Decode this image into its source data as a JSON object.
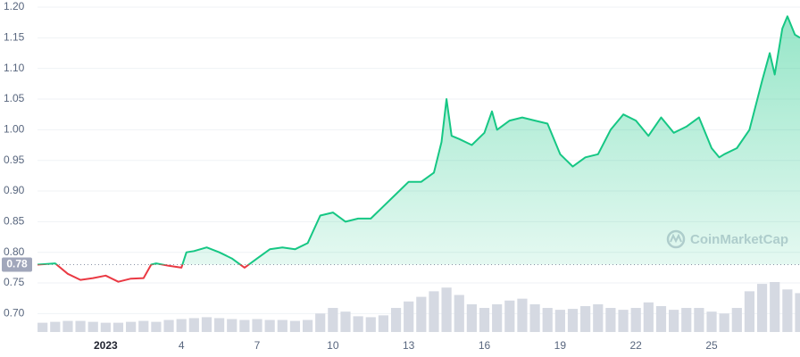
{
  "chart_data": {
    "type": "line",
    "x": [
      -1.7,
      -1,
      -0.5,
      0,
      0.5,
      1,
      1.5,
      2,
      2.5,
      2.8,
      3,
      3.5,
      4,
      4.2,
      4.5,
      5,
      5.5,
      6,
      6.5,
      7,
      7.5,
      8,
      8.5,
      9,
      9.5,
      10,
      10.5,
      11,
      11.5,
      12,
      12.5,
      13,
      13.5,
      14,
      14.3,
      14.5,
      14.7,
      15,
      15.5,
      16,
      16.3,
      16.5,
      17,
      17.5,
      18,
      18.5,
      19,
      19.5,
      20,
      20.5,
      21,
      21.5,
      22,
      22.5,
      23,
      23.5,
      24,
      24.5,
      25,
      25.3,
      25.5,
      26,
      26.5,
      27,
      27.3,
      27.5,
      27.8,
      28,
      28.3,
      28.5
    ],
    "series": [
      {
        "values": [
          0.78,
          0.782,
          0.765,
          0.755,
          0.758,
          0.762,
          0.752,
          0.757,
          0.758,
          0.78,
          0.782,
          0.778,
          0.775,
          0.8,
          0.802,
          0.808,
          0.8,
          0.79,
          0.775,
          0.79,
          0.805,
          0.808,
          0.805,
          0.815,
          0.86,
          0.865,
          0.85,
          0.855,
          0.855,
          0.875,
          0.895,
          0.915,
          0.915,
          0.93,
          0.98,
          1.05,
          0.99,
          0.985,
          0.975,
          0.995,
          1.03,
          1.0,
          1.015,
          1.02,
          1.015,
          1.01,
          0.96,
          0.94,
          0.955,
          0.96,
          1.0,
          1.025,
          1.015,
          0.99,
          1.02,
          0.995,
          1.005,
          1.02,
          0.97,
          0.955,
          0.96,
          0.97,
          1.0,
          1.08,
          1.125,
          1.09,
          1.165,
          1.185,
          1.155,
          1.15
        ],
        "color": "#16c784",
        "color_below": "#ea3943"
      }
    ],
    "baseline": 0.78,
    "volume": {
      "x": [
        -1.5,
        -1,
        -0.5,
        0,
        0.5,
        1,
        1.5,
        2,
        2.5,
        3,
        3.5,
        4,
        4.5,
        5,
        5.5,
        6,
        6.5,
        7,
        7.5,
        8,
        8.5,
        9,
        9.5,
        10,
        10.5,
        11,
        11.5,
        12,
        12.5,
        13,
        13.5,
        14,
        14.5,
        15,
        15.5,
        16,
        16.5,
        17,
        17.5,
        18,
        18.5,
        19,
        19.5,
        20,
        20.5,
        21,
        21.5,
        22,
        22.5,
        23,
        23.5,
        24,
        24.5,
        25,
        25.5,
        26,
        26.5,
        27,
        27.5,
        28,
        28.5
      ],
      "values": [
        10,
        11,
        12,
        12,
        11,
        10,
        10,
        11,
        12,
        11,
        13,
        14,
        15,
        16,
        15,
        14,
        13,
        14,
        13,
        13,
        12,
        13,
        20,
        26,
        22,
        17,
        16,
        18,
        26,
        33,
        38,
        44,
        48,
        40,
        30,
        26,
        30,
        34,
        36,
        30,
        26,
        24,
        25,
        28,
        30,
        26,
        24,
        26,
        32,
        28,
        24,
        26,
        26,
        22,
        20,
        26,
        44,
        52,
        54,
        46,
        42
      ],
      "color": "#d5d9e2"
    },
    "xlim": [
      -1.7,
      28.5
    ],
    "xticks": [
      {
        "value": 1,
        "label": "2023"
      },
      4,
      7,
      10,
      13,
      16,
      19,
      22,
      25
    ],
    "ylim": [
      0.67,
      1.2
    ],
    "yticks": [
      {
        "value": 0.7,
        "label": "0.70"
      },
      0.75,
      {
        "value": 0.8,
        "label": "0.80"
      },
      0.85,
      {
        "value": 0.9,
        "label": "0.90"
      },
      0.95,
      {
        "value": 1.0,
        "label": "1.00"
      },
      1.05,
      {
        "value": 1.1,
        "label": "1.10"
      },
      1.15,
      {
        "value": 1.2,
        "label": "1.20"
      }
    ],
    "grid": true,
    "watermark": "CoinMarketCap"
  }
}
